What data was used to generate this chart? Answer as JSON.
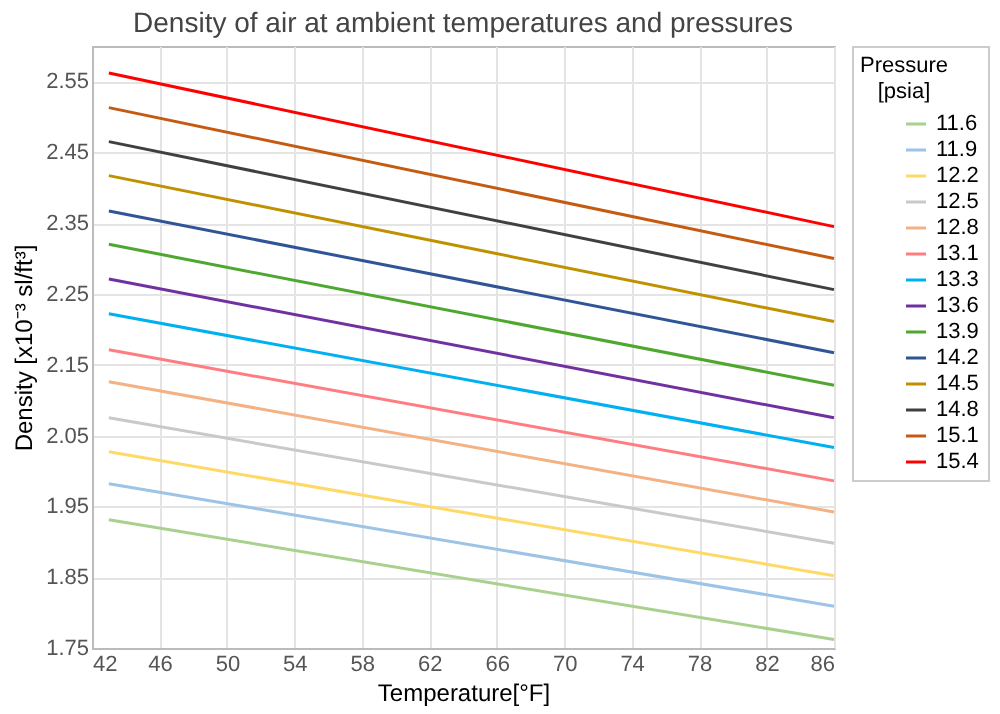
{
  "chart_data": {
    "type": "line",
    "title": "Density of air at ambient temperatures and pressures",
    "xlabel": "Temperature[°F]",
    "ylabel": "Density [x10⁻³ sl/ft³]",
    "legend_title": "Pressure [psia]",
    "x": [
      43,
      86
    ],
    "xlim": [
      42,
      86
    ],
    "xticks": [
      42,
      46,
      50,
      54,
      58,
      62,
      66,
      70,
      74,
      78,
      82,
      86
    ],
    "ylim": [
      1.75,
      2.6
    ],
    "yticks": [
      1.75,
      1.85,
      1.95,
      2.05,
      2.15,
      2.25,
      2.35,
      2.45,
      2.55
    ],
    "grid": true,
    "legend": "right",
    "marker": "none",
    "line_style": "solid",
    "series": [
      {
        "name": "11.6",
        "color": "#a9d18e",
        "values": [
          1.931,
          1.762
        ]
      },
      {
        "name": "11.9",
        "color": "#9dc3e6",
        "values": [
          1.982,
          1.809
        ]
      },
      {
        "name": "12.2",
        "color": "#ffd966",
        "values": [
          2.027,
          1.852
        ]
      },
      {
        "name": "12.5",
        "color": "#c9c9c9",
        "values": [
          2.075,
          1.898
        ]
      },
      {
        "name": "12.8",
        "color": "#f4b183",
        "values": [
          2.126,
          1.942
        ]
      },
      {
        "name": "13.1",
        "color": "#ff7c80",
        "values": [
          2.171,
          1.986
        ]
      },
      {
        "name": "13.3",
        "color": "#00b0f0",
        "values": [
          2.222,
          2.033
        ]
      },
      {
        "name": "13.6",
        "color": "#7030a0",
        "values": [
          2.271,
          2.075
        ]
      },
      {
        "name": "13.9",
        "color": "#4ea72e",
        "values": [
          2.32,
          2.121
        ]
      },
      {
        "name": "14.2",
        "color": "#2f5597",
        "values": [
          2.367,
          2.167
        ]
      },
      {
        "name": "14.5",
        "color": "#bf9000",
        "values": [
          2.417,
          2.211
        ]
      },
      {
        "name": "14.8",
        "color": "#404040",
        "values": [
          2.465,
          2.256
        ]
      },
      {
        "name": "15.1",
        "color": "#c55a11",
        "values": [
          2.513,
          2.3
        ]
      },
      {
        "name": "15.4",
        "color": "#ff0000",
        "values": [
          2.562,
          2.345
        ]
      }
    ]
  }
}
